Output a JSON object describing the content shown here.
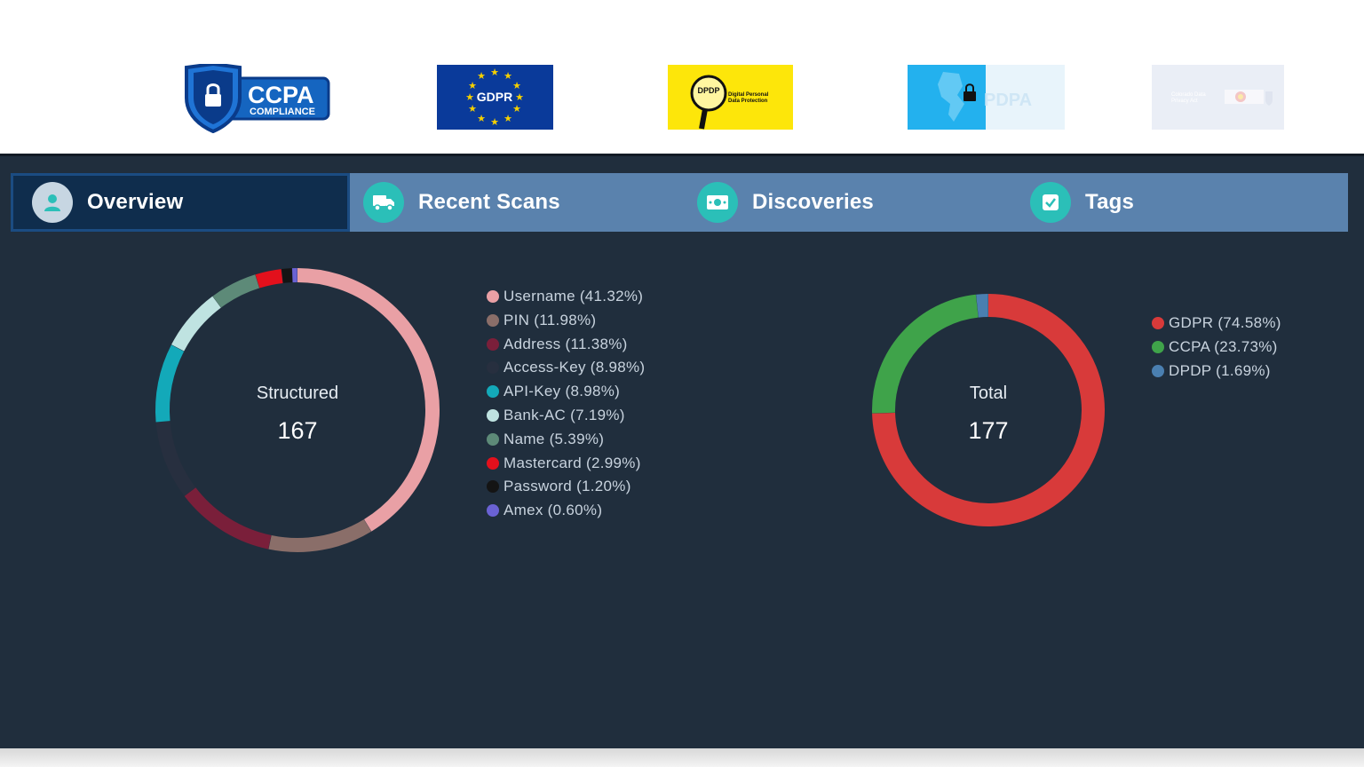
{
  "logos": {
    "ccpa": {
      "line1": "CCPA",
      "line2": "COMPLIANCE"
    },
    "gdpr": {
      "text": "GDPR"
    },
    "dpdp": {
      "badge": "DPDP",
      "line1": "Digital Personal",
      "line2": "Data Protection"
    },
    "pdpa": {
      "text": "PDPA"
    },
    "cdpa": {
      "line1": "Colorado Data",
      "line2": "Privacy Act"
    }
  },
  "tabs": [
    {
      "label": "Overview",
      "icon": "user-icon",
      "active": true
    },
    {
      "label": "Recent Scans",
      "icon": "truck-icon",
      "active": false
    },
    {
      "label": "Discoveries",
      "icon": "money-icon",
      "active": false
    },
    {
      "label": "Tags",
      "icon": "checkbox-icon",
      "active": false
    }
  ],
  "chart_data": [
    {
      "type": "pie",
      "center_label": "Structured",
      "total": "167",
      "series": [
        {
          "name": "Username",
          "value": 41.32,
          "label": "Username (41.32%)",
          "color": "#e9a0a5"
        },
        {
          "name": "PIN",
          "value": 11.98,
          "label": "PIN (11.98%)",
          "color": "#8a6e69"
        },
        {
          "name": "Address",
          "value": 11.38,
          "label": "Address (11.38%)",
          "color": "#7a1f3a"
        },
        {
          "name": "Access-Key",
          "value": 8.98,
          "label": "Access-Key (8.98%)",
          "color": "#272f3f"
        },
        {
          "name": "API-Key",
          "value": 8.98,
          "label": "API-Key (8.98%)",
          "color": "#13a9b9"
        },
        {
          "name": "Bank-AC",
          "value": 7.19,
          "label": "Bank-AC (7.19%)",
          "color": "#bfe3e1"
        },
        {
          "name": "Name",
          "value": 5.39,
          "label": "Name (5.39%)",
          "color": "#5d8a78"
        },
        {
          "name": "Mastercard",
          "value": 2.99,
          "label": "Mastercard (2.99%)",
          "color": "#e3101c"
        },
        {
          "name": "Password",
          "value": 1.2,
          "label": "Password (1.20%)",
          "color": "#141414"
        },
        {
          "name": "Amex",
          "value": 0.6,
          "label": "Amex (0.60%)",
          "color": "#6a62d4"
        }
      ]
    },
    {
      "type": "pie",
      "center_label": "Total",
      "total": "177",
      "series": [
        {
          "name": "GDPR",
          "value": 74.58,
          "label": "GDPR (74.58%)",
          "color": "#d83a3a"
        },
        {
          "name": "CCPA",
          "value": 23.73,
          "label": "CCPA (23.73%)",
          "color": "#3fa34a"
        },
        {
          "name": "DPDP",
          "value": 1.69,
          "label": "DPDP (1.69%)",
          "color": "#4a7fb0"
        }
      ]
    }
  ]
}
